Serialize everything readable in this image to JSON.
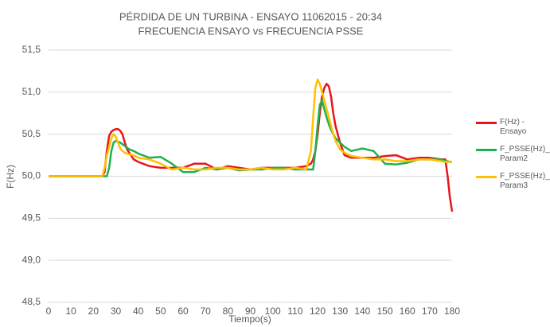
{
  "chart_data": {
    "type": "line",
    "title": "PÉRDIDA DE UN TURBINA - ENSAYO 11062015 - 20:34",
    "subtitle": "FRECUENCIA ENSAYO vs FRECUENCIA PSSE",
    "xlabel": "Tiempo(s)",
    "ylabel": "F(Hz)",
    "x": [
      0,
      10,
      20,
      24,
      25,
      26,
      27,
      28,
      29,
      30,
      31,
      32,
      33,
      34,
      35,
      36,
      38,
      40,
      45,
      50,
      55,
      60,
      65,
      70,
      75,
      80,
      85,
      90,
      95,
      100,
      105,
      110,
      115,
      117,
      118,
      119,
      120,
      121,
      122,
      123,
      124,
      125,
      126,
      127,
      128,
      130,
      132,
      135,
      140,
      145,
      150,
      155,
      160,
      165,
      170,
      175,
      177,
      178,
      179,
      180
    ],
    "series": [
      {
        "name": "F(Hz) - Ensayo",
        "color": "#e8161b",
        "values": [
          50,
          50,
          50,
          50,
          50.05,
          50.3,
          50.48,
          50.53,
          50.55,
          50.56,
          50.56,
          50.54,
          50.5,
          50.4,
          50.32,
          50.28,
          50.2,
          50.17,
          50.12,
          50.1,
          50.1,
          50.1,
          50.15,
          50.15,
          50.08,
          50.12,
          50.1,
          50.08,
          50.1,
          50.1,
          50.1,
          50.1,
          50.12,
          50.15,
          50.2,
          50.3,
          50.5,
          50.75,
          50.95,
          51.05,
          51.1,
          51.07,
          50.95,
          50.75,
          50.6,
          50.4,
          50.25,
          50.22,
          50.22,
          50.22,
          50.24,
          50.25,
          50.2,
          50.22,
          50.22,
          50.2,
          50.2,
          50,
          49.75,
          49.58
        ]
      },
      {
        "name": "F_PSSE(Hz)_ Param2",
        "color": "#1fb050",
        "values": [
          50,
          50,
          50,
          50,
          50,
          50,
          50.1,
          50.3,
          50.4,
          50.42,
          50.41,
          50.4,
          50.38,
          50.36,
          50.34,
          50.32,
          50.3,
          50.27,
          50.22,
          50.23,
          50.15,
          50.05,
          50.05,
          50.1,
          50.08,
          50.1,
          50.07,
          50.08,
          50.08,
          50.1,
          50.1,
          50.08,
          50.08,
          50.08,
          50.08,
          50.3,
          50.6,
          50.85,
          50.9,
          50.8,
          50.7,
          50.62,
          50.55,
          50.5,
          50.45,
          50.4,
          50.35,
          50.3,
          50.33,
          50.3,
          50.15,
          50.14,
          50.16,
          50.2,
          50.2,
          50.2,
          50.18,
          50.18,
          50.17,
          50.17
        ]
      },
      {
        "name": "F_PSSE(Hz)_ Param3",
        "color": "#ffc000",
        "values": [
          50,
          50,
          50,
          50,
          50.1,
          50.25,
          50.35,
          50.45,
          50.5,
          50.47,
          50.4,
          50.33,
          50.3,
          50.28,
          50.27,
          50.26,
          50.25,
          50.22,
          50.2,
          50.15,
          50.08,
          50.1,
          50.08,
          50.08,
          50.1,
          50.1,
          50.08,
          50.08,
          50.1,
          50.08,
          50.08,
          50.1,
          50.08,
          50.3,
          50.7,
          51.05,
          51.15,
          51.1,
          51,
          50.9,
          50.8,
          50.7,
          50.6,
          50.5,
          50.42,
          50.32,
          50.28,
          50.24,
          50.22,
          50.2,
          50.2,
          50.18,
          50.18,
          50.2,
          50.2,
          50.18,
          50.17,
          50.17,
          50.17,
          50.17
        ]
      }
    ],
    "xlim": [
      0,
      180
    ],
    "xticks": [
      0,
      10,
      20,
      30,
      40,
      50,
      60,
      70,
      80,
      90,
      100,
      110,
      120,
      130,
      140,
      150,
      160,
      170,
      180
    ],
    "ylim": [
      48.5,
      51.5
    ],
    "yticks": [
      {
        "value": 48.5,
        "label": "48,5"
      },
      {
        "value": 49,
        "label": "49,0"
      },
      {
        "value": 49.5,
        "label": "49,5"
      },
      {
        "value": 50,
        "label": "50,0"
      },
      {
        "value": 50.5,
        "label": "50,5"
      },
      {
        "value": 51,
        "label": "51,0"
      },
      {
        "value": 51.5,
        "label": "51,5"
      }
    ],
    "grid": true,
    "legend": "right"
  }
}
